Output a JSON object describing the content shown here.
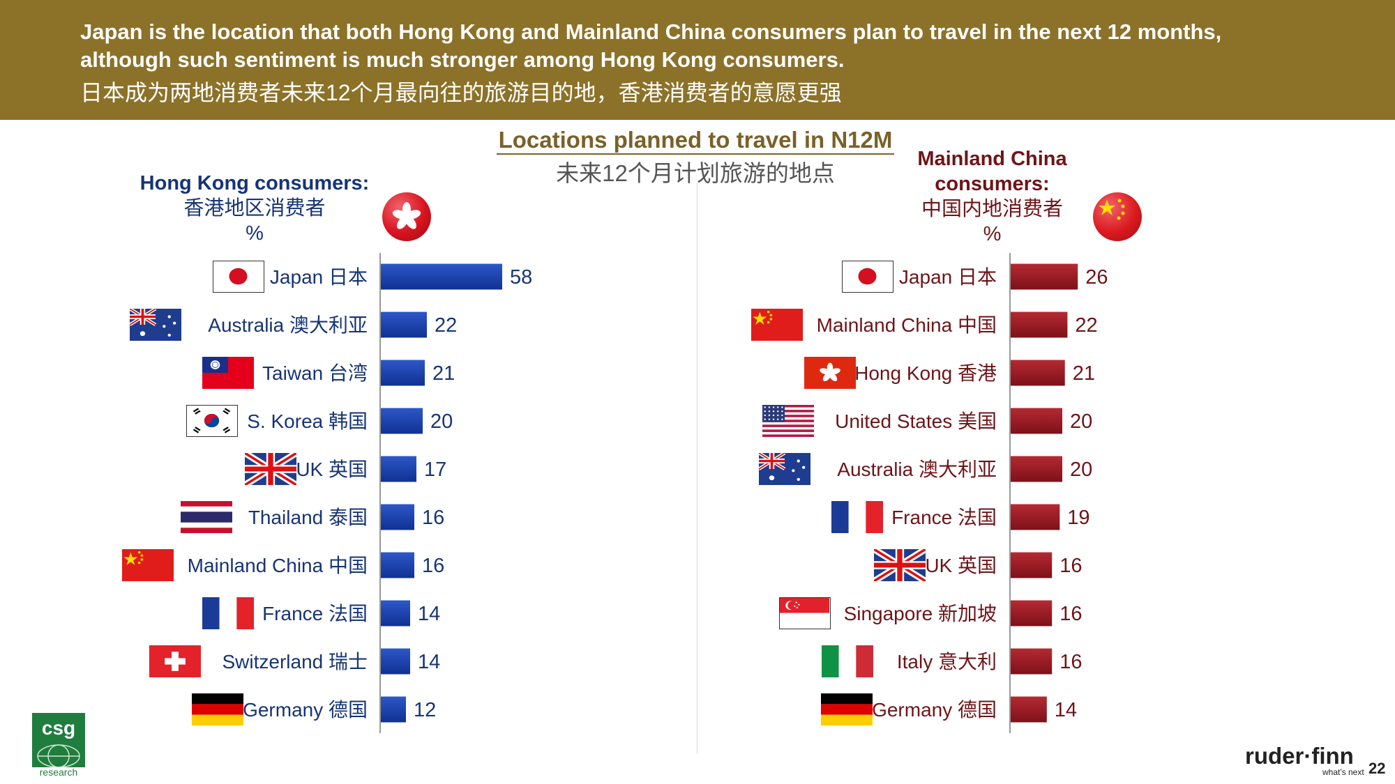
{
  "header": {
    "line1": "Japan is the location that both Hong Kong and Mainland China consumers plan to travel in the next 12 months,",
    "line2": "although such sentiment is much stronger among Hong Kong consumers.",
    "line3": "日本成为两地消费者未来12个月最向往的旅游目的地，香港消费者的意愿更强"
  },
  "chart_title": {
    "en": "Locations planned to travel in N12M",
    "zh": "未来12个月计划旅游的地点"
  },
  "hk_panel": {
    "title_en": "Hong Kong consumers:",
    "title_zh": "香港地区消费者",
    "unit": "%"
  },
  "cn_panel": {
    "title_en_1": "Mainland China",
    "title_en_2": "consumers:",
    "title_zh": "中国内地消费者",
    "unit": "%"
  },
  "colors": {
    "header_bg": "#8c7128",
    "hk_bar": "#1740a8",
    "cn_bar": "#9e1a22",
    "hk_text": "#163476",
    "cn_text": "#6e1418"
  },
  "chart_data": [
    {
      "type": "bar",
      "orientation": "horizontal",
      "categories": [
        "Japan 日本",
        "Australia 澳大利亚",
        "Taiwan 台湾",
        "S. Korea 韩国",
        "UK 英国",
        "Thailand 泰国",
        "Mainland China 中国",
        "France 法国",
        "Switzerland 瑞士",
        "Germany 德国"
      ],
      "flags": [
        "japan",
        "australia",
        "taiwan",
        "korea",
        "uk",
        "thailand",
        "china",
        "france",
        "switzerland",
        "germany"
      ],
      "values": [
        58,
        22,
        21,
        20,
        17,
        16,
        16,
        14,
        14,
        12
      ],
      "title": "Hong Kong consumers:",
      "color": "#1740a8",
      "data_labels": true,
      "grid": false
    },
    {
      "type": "bar",
      "orientation": "horizontal",
      "categories": [
        "Japan 日本",
        "Mainland China 中国",
        "Hong Kong 香港",
        "United States 美国",
        "Australia 澳大利亚",
        "France 法国",
        "UK 英国",
        "Singapore 新加坡",
        "Italy 意大利",
        "Germany 德国"
      ],
      "flags": [
        "japan",
        "china",
        "hongkong",
        "usa",
        "australia",
        "france",
        "uk",
        "singapore",
        "italy",
        "germany"
      ],
      "values": [
        26,
        22,
        21,
        20,
        20,
        19,
        16,
        16,
        16,
        14
      ],
      "title": "Mainland China consumers:",
      "color": "#9e1a22",
      "data_labels": true,
      "grid": false
    }
  ],
  "footer": {
    "csg": "csg",
    "csg_sub": "research",
    "brand": "ruder·finn",
    "tagline": "what's next",
    "page": "22"
  }
}
